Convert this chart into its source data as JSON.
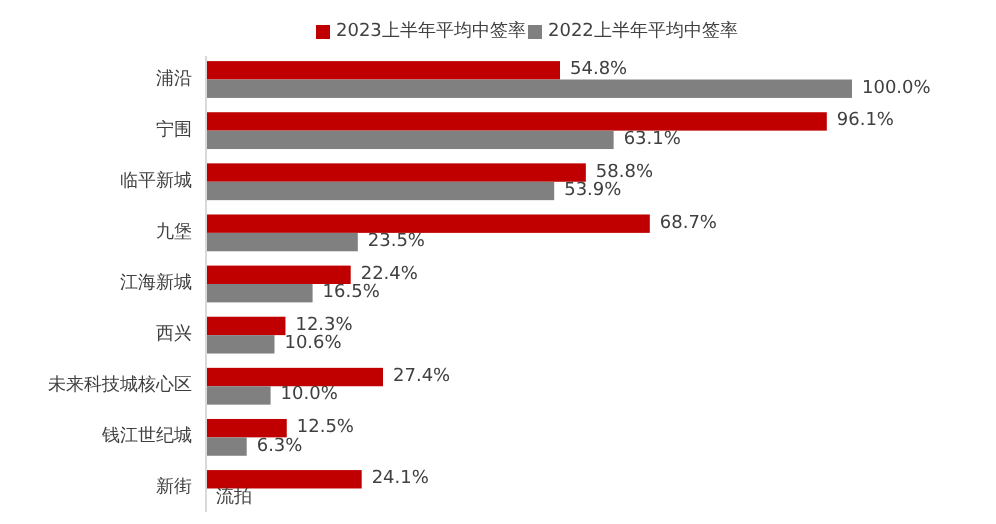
{
  "chart_data": {
    "type": "bar",
    "orientation": "horizontal",
    "categories": [
      "浦沿",
      "宁围",
      "临平新城",
      "九堡",
      "江海新城",
      "西兴",
      "未来科技城核心区",
      "钱江世纪城",
      "新街"
    ],
    "series": [
      {
        "name": "2023上半年平均中签率",
        "color": "#c00000",
        "values": [
          54.8,
          96.1,
          58.8,
          68.7,
          22.4,
          12.3,
          27.4,
          12.5,
          24.1
        ],
        "value_labels": [
          "54.8%",
          "96.1%",
          "58.8%",
          "68.7%",
          "22.4%",
          "12.3%",
          "27.4%",
          "12.5%",
          "24.1%"
        ]
      },
      {
        "name": "2022上半年平均中签率",
        "color": "#808080",
        "values": [
          100.0,
          63.1,
          53.9,
          23.5,
          16.5,
          10.6,
          10.0,
          6.3,
          null
        ],
        "value_labels": [
          "100.0%",
          "63.1%",
          "53.9%",
          "23.5%",
          "16.5%",
          "10.6%",
          "10.0%",
          "6.3%",
          "流拍"
        ]
      }
    ],
    "legend": "top"
  }
}
